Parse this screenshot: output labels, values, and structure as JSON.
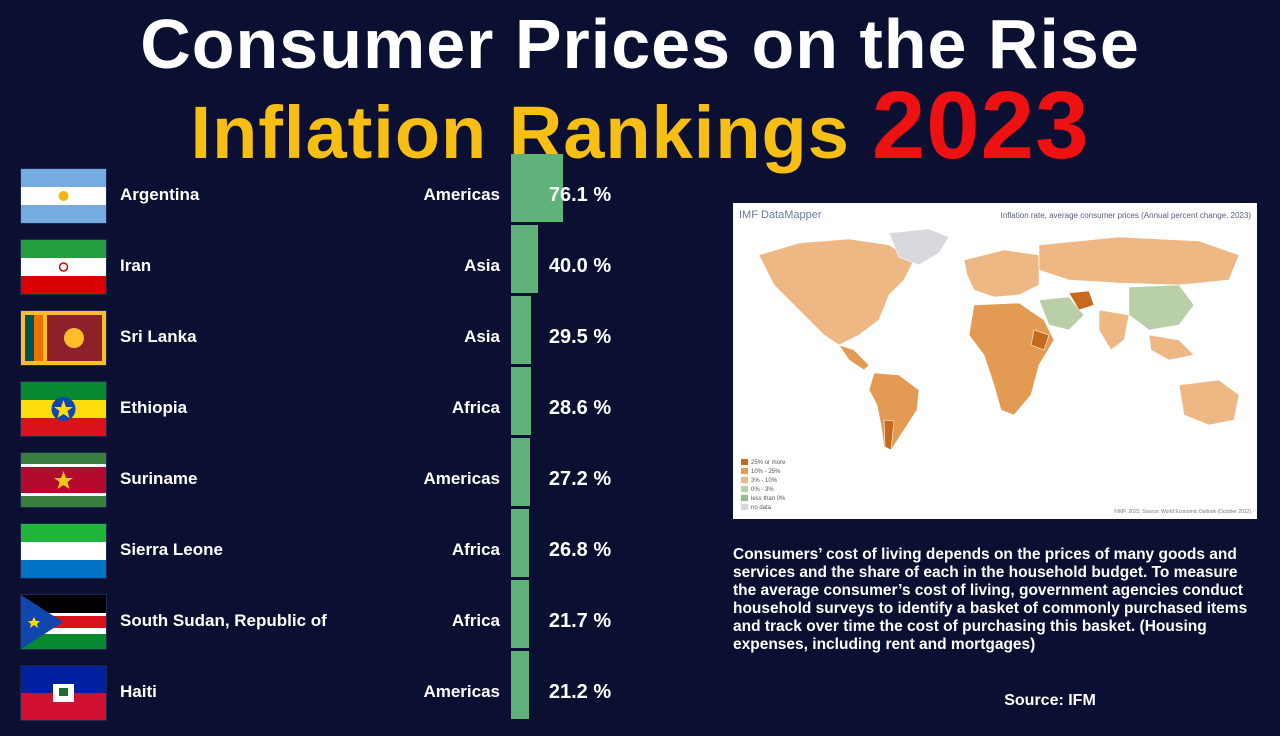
{
  "title_line1": "Consumer Prices on the Rise",
  "title_line2": "Inflation Rankings",
  "title_year": "2023",
  "chart_data": {
    "type": "bar",
    "title": "Inflation Rankings 2023",
    "unit": "%",
    "xlim": [
      0,
      76.1
    ],
    "rows": [
      {
        "country": "Argentina",
        "region": "Americas",
        "value": 76.1,
        "label": "76.1 %",
        "flag": "argentina-flag"
      },
      {
        "country": "Iran",
        "region": "Asia",
        "value": 40.0,
        "label": "40.0 %",
        "flag": "iran-flag"
      },
      {
        "country": "Sri Lanka",
        "region": "Asia",
        "value": 29.5,
        "label": "29.5 %",
        "flag": "sri-lanka-flag"
      },
      {
        "country": "Ethiopia",
        "region": "Africa",
        "value": 28.6,
        "label": "28.6 %",
        "flag": "ethiopia-flag"
      },
      {
        "country": "Suriname",
        "region": "Americas",
        "value": 27.2,
        "label": "27.2 %",
        "flag": "suriname-flag"
      },
      {
        "country": "Sierra Leone",
        "region": "Africa",
        "value": 26.8,
        "label": "26.8 %",
        "flag": "sierra-leone-flag"
      },
      {
        "country": "South Sudan, Republic of",
        "region": "Africa",
        "value": 21.7,
        "label": "21.7 %",
        "flag": "south-sudan-flag"
      },
      {
        "country": "Haiti",
        "region": "Americas",
        "value": 21.2,
        "label": "21.2 %",
        "flag": "haiti-flag"
      }
    ],
    "bar_color": "#5fb27a"
  },
  "map": {
    "logo": "IMF DataMapper",
    "title": "Inflation rate, average consumer prices (Annual percent change, 2023)",
    "legend": [
      {
        "label": "25% or more",
        "color": "#c56a1f"
      },
      {
        "label": "10% - 25%",
        "color": "#e39a52"
      },
      {
        "label": "3% - 10%",
        "color": "#eeb885"
      },
      {
        "label": "0% - 3%",
        "color": "#b8cfa8"
      },
      {
        "label": "less than 0%",
        "color": "#8fbf8a"
      },
      {
        "label": "no data",
        "color": "#d7d9dc"
      }
    ],
    "footer": "©IMF, 2022, Source: World Economic Outlook (October 2022)"
  },
  "description": "Consumers’ cost of living depends on the prices of many goods and services and the share of each in the household budget. To measure the average consumer’s cost of living, government agencies conduct household surveys to identify a basket of commonly purchased items and track over time the cost of purchasing this basket. (Housing expenses, including rent and mortgages)",
  "source": "Source: IFM",
  "colors": {
    "background": "#0b1033",
    "title_white": "#ffffff",
    "title_yellow": "#f7bf14",
    "title_red": "#ee1111"
  }
}
